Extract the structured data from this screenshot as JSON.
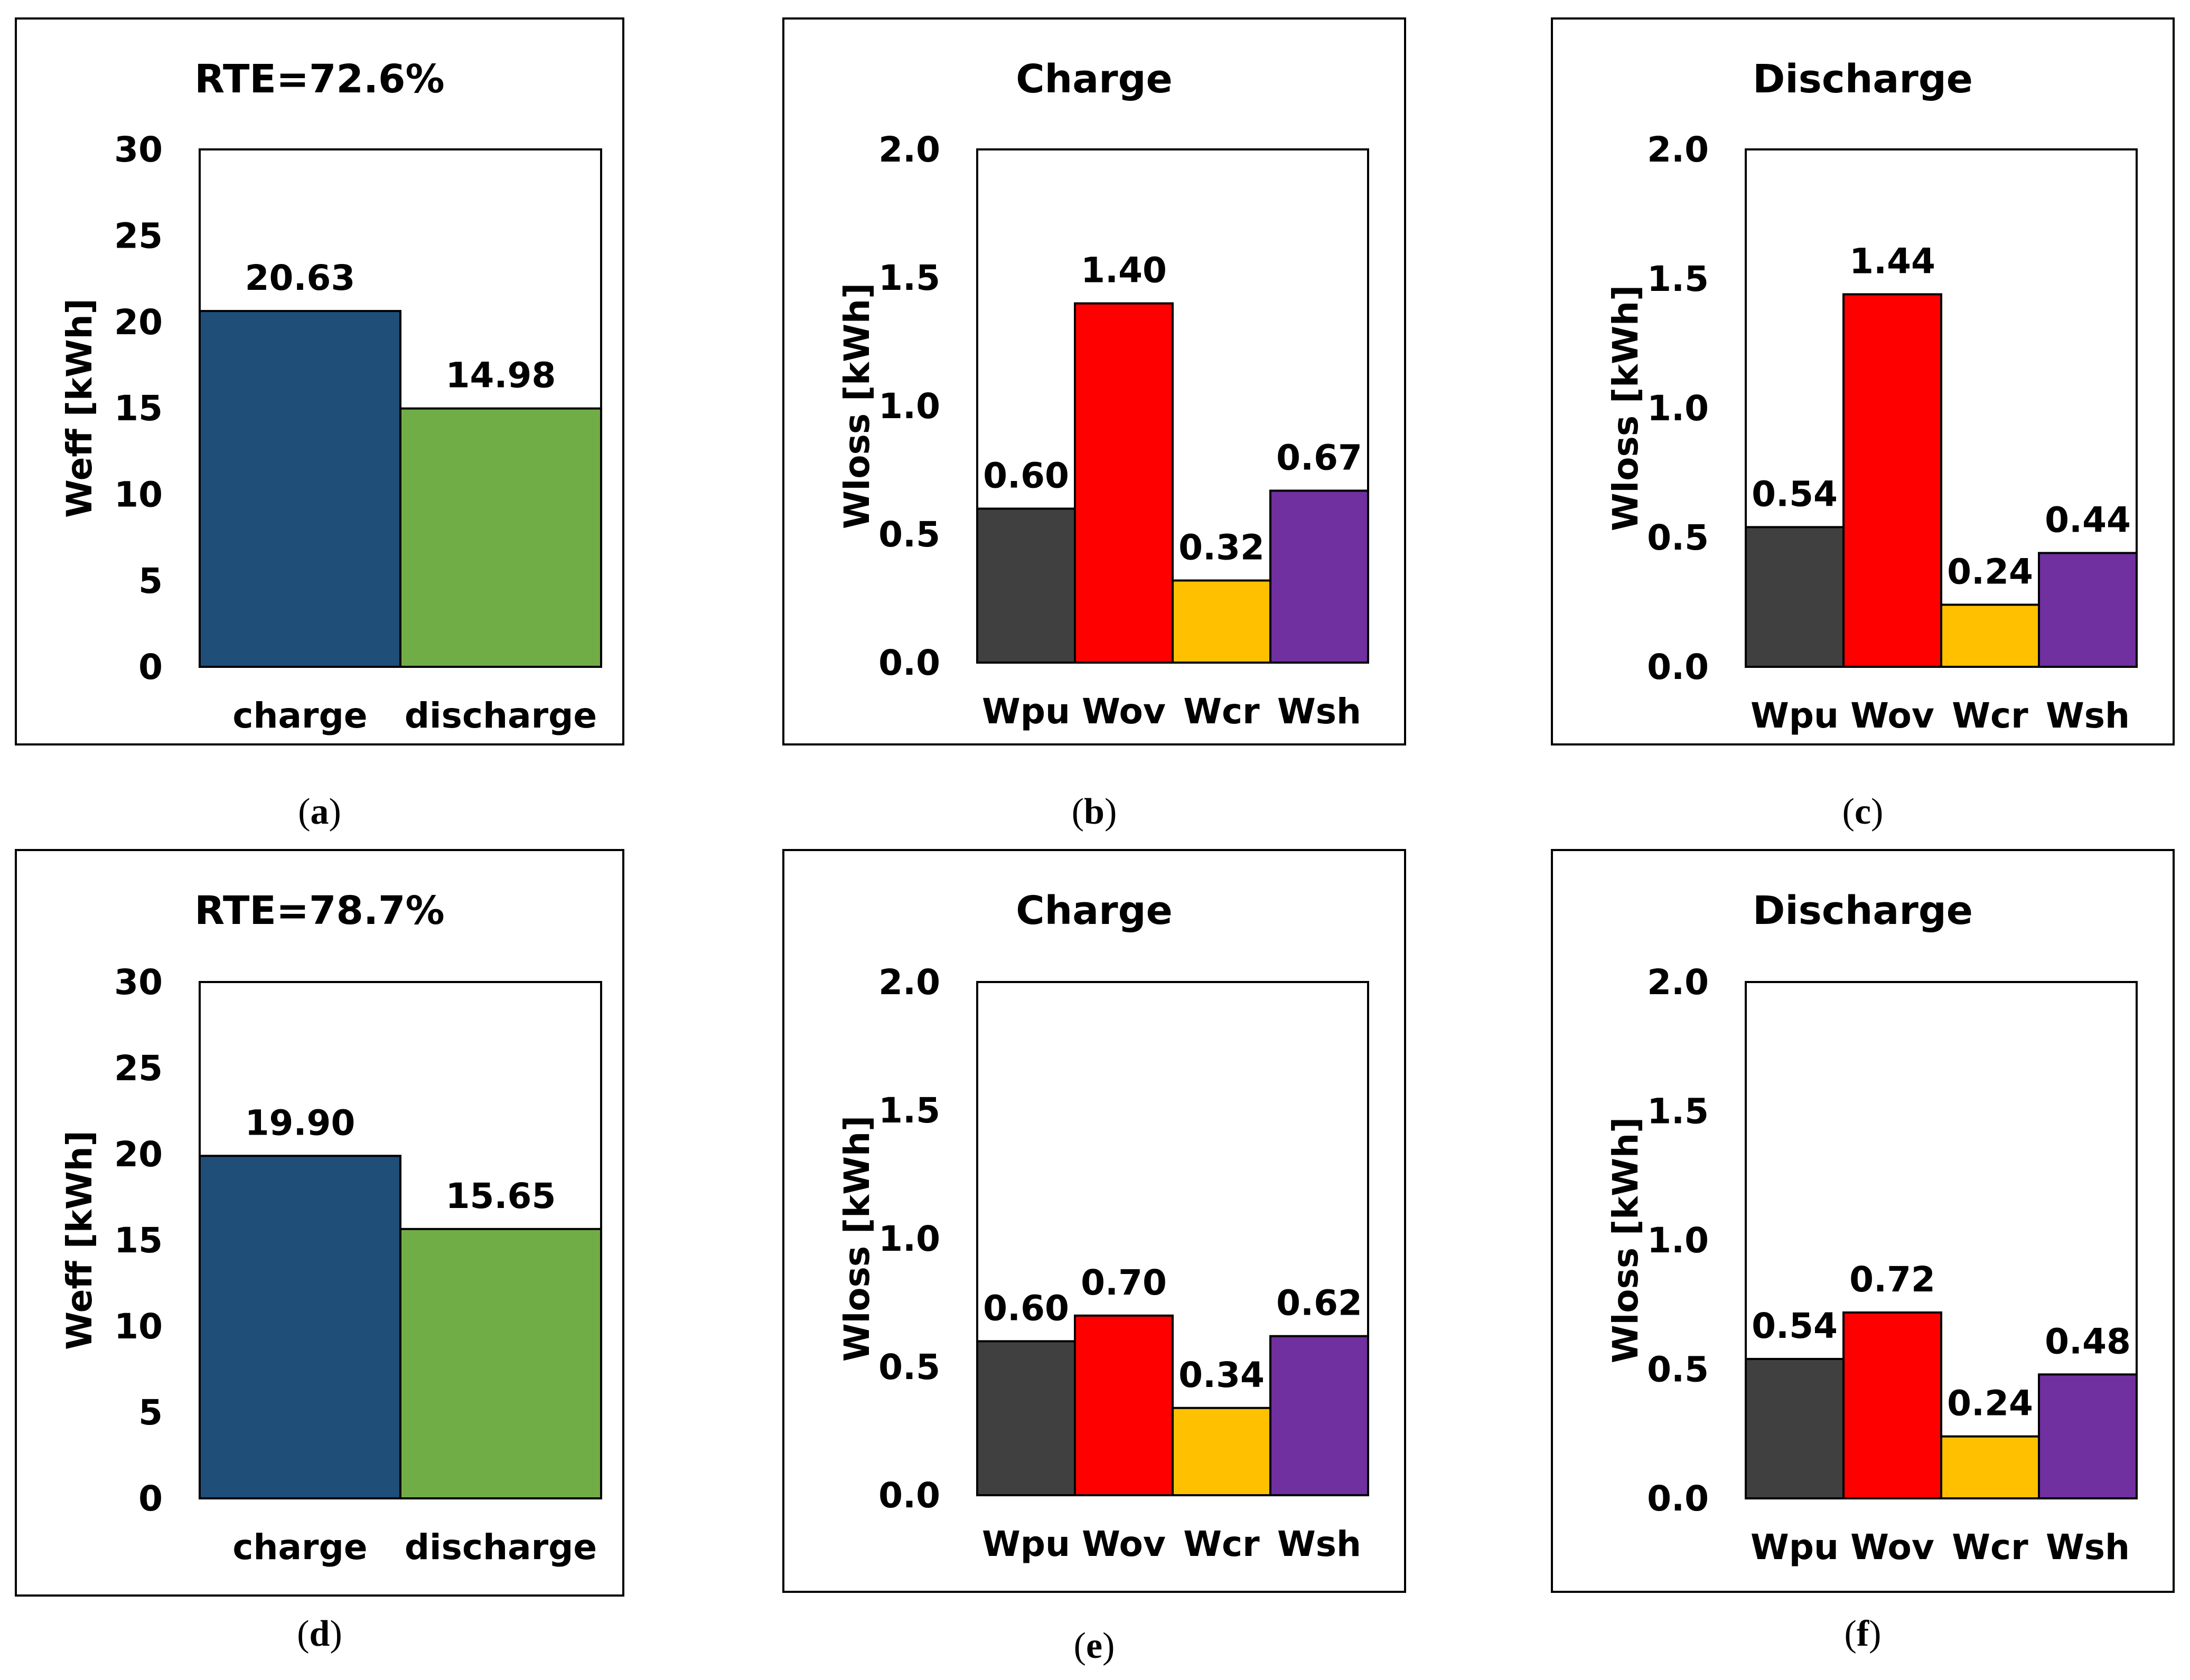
{
  "colors": {
    "charge": "#1F4E79",
    "discharge": "#70AD47",
    "Wpu": "#404040",
    "Wov": "#FF0000",
    "Wcr": "#FFC000",
    "Wsh": "#7030A0"
  },
  "chart_data": [
    {
      "id": "a",
      "type": "bar",
      "caption_letter": "a",
      "title": "RTE=72.6%",
      "ylabel": "Weff [kWh]",
      "xlabel": "",
      "ylim": [
        0,
        30
      ],
      "yticks": [
        "0",
        "5",
        "10",
        "15",
        "20",
        "25",
        "30"
      ],
      "categories": [
        "charge",
        "discharge"
      ],
      "values": [
        20.63,
        14.98
      ],
      "labels": [
        "20.63",
        "14.98"
      ],
      "bar_colors": [
        "#1F4E79",
        "#70AD47"
      ]
    },
    {
      "id": "b",
      "type": "bar",
      "caption_letter": "b",
      "title": "Charge",
      "ylabel": "Wloss [kWh]",
      "xlabel": "",
      "ylim": [
        0,
        2
      ],
      "yticks": [
        "0.0",
        "0.5",
        "1.0",
        "1.5",
        "2.0"
      ],
      "categories": [
        "Wpu",
        "Wov",
        "Wcr",
        "Wsh"
      ],
      "values": [
        0.6,
        1.4,
        0.32,
        0.67
      ],
      "labels": [
        "0.60",
        "1.40",
        "0.32",
        "0.67"
      ],
      "bar_colors": [
        "#404040",
        "#FF0000",
        "#FFC000",
        "#7030A0"
      ]
    },
    {
      "id": "c",
      "type": "bar",
      "caption_letter": "c",
      "title": "Discharge",
      "ylabel": "Wloss [kWh]",
      "xlabel": "",
      "ylim": [
        0,
        2
      ],
      "yticks": [
        "0.0",
        "0.5",
        "1.0",
        "1.5",
        "2.0"
      ],
      "categories": [
        "Wpu",
        "Wov",
        "Wcr",
        "Wsh"
      ],
      "values": [
        0.54,
        1.44,
        0.24,
        0.44
      ],
      "labels": [
        "0.54",
        "1.44",
        "0.24",
        "0.44"
      ],
      "bar_colors": [
        "#404040",
        "#FF0000",
        "#FFC000",
        "#7030A0"
      ]
    },
    {
      "id": "d",
      "type": "bar",
      "caption_letter": "d",
      "title": "RTE=78.7%",
      "ylabel": "Weff [kWh]",
      "xlabel": "",
      "ylim": [
        0,
        30
      ],
      "yticks": [
        "0",
        "5",
        "10",
        "15",
        "20",
        "25",
        "30"
      ],
      "categories": [
        "charge",
        "discharge"
      ],
      "values": [
        19.9,
        15.65
      ],
      "labels": [
        "19.90",
        "15.65"
      ],
      "bar_colors": [
        "#1F4E79",
        "#70AD47"
      ]
    },
    {
      "id": "e",
      "type": "bar",
      "caption_letter": "e",
      "title": "Charge",
      "ylabel": "Wloss [kWh]",
      "xlabel": "",
      "ylim": [
        0,
        2
      ],
      "yticks": [
        "0.0",
        "0.5",
        "1.0",
        "1.5",
        "2.0"
      ],
      "categories": [
        "Wpu",
        "Wov",
        "Wcr",
        "Wsh"
      ],
      "values": [
        0.6,
        0.7,
        0.34,
        0.62
      ],
      "labels": [
        "0.60",
        "0.70",
        "0.34",
        "0.62"
      ],
      "bar_colors": [
        "#404040",
        "#FF0000",
        "#FFC000",
        "#7030A0"
      ]
    },
    {
      "id": "f",
      "type": "bar",
      "caption_letter": "f",
      "title": "Discharge",
      "ylabel": "Wloss [kWh]",
      "xlabel": "",
      "ylim": [
        0,
        2
      ],
      "yticks": [
        "0.0",
        "0.5",
        "1.0",
        "1.5",
        "2.0"
      ],
      "categories": [
        "Wpu",
        "Wov",
        "Wcr",
        "Wsh"
      ],
      "values": [
        0.54,
        0.72,
        0.24,
        0.48
      ],
      "labels": [
        "0.54",
        "0.72",
        "0.24",
        "0.48"
      ],
      "bar_colors": [
        "#404040",
        "#FF0000",
        "#FFC000",
        "#7030A0"
      ]
    }
  ]
}
